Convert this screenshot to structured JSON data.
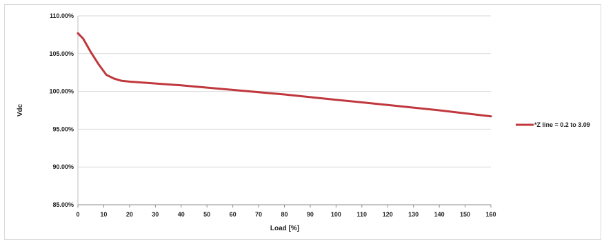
{
  "chart_data": {
    "type": "line",
    "title": "",
    "xlabel": "Load [%]",
    "ylabel": "Vdc",
    "xlim": [
      0,
      160
    ],
    "ylim": [
      0.85,
      1.1
    ],
    "x_ticks": [
      0,
      10,
      20,
      30,
      40,
      50,
      60,
      70,
      80,
      90,
      100,
      110,
      120,
      130,
      140,
      150,
      160
    ],
    "y_ticks": [
      0.85,
      0.9,
      0.95,
      1.0,
      1.05,
      1.1
    ],
    "y_tick_labels": [
      "85.00%",
      "90.00%",
      "95.00%",
      "100.00%",
      "105.00%",
      "110.00%"
    ],
    "grid": "horizontal",
    "legend_position": "right",
    "series": [
      {
        "name": "*Z line = 0.2 to 3.09",
        "color": "#c0373d",
        "x": [
          0,
          2,
          5,
          8,
          11,
          14,
          17,
          20,
          40,
          60,
          80,
          100,
          120,
          140,
          160
        ],
        "y": [
          1.077,
          1.07,
          1.052,
          1.036,
          1.022,
          1.017,
          1.014,
          1.013,
          1.008,
          1.002,
          0.996,
          0.989,
          0.982,
          0.975,
          0.967
        ]
      }
    ]
  }
}
